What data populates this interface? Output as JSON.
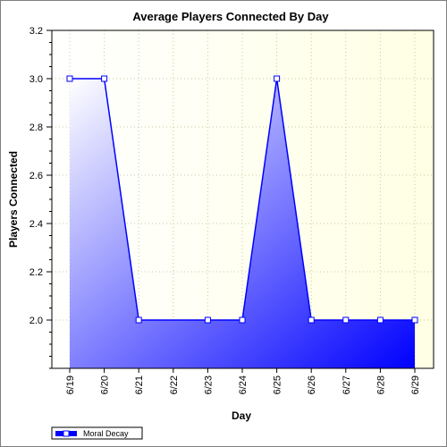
{
  "chart_data": {
    "type": "area",
    "title": "Average Players Connected By Day",
    "xlabel": "Day",
    "ylabel": "Players Connected",
    "categories": [
      "6/19",
      "6/20",
      "6/21",
      "6/22",
      "6/23",
      "6/24",
      "6/25",
      "6/26",
      "6/27",
      "6/28",
      "6/29"
    ],
    "series": [
      {
        "name": "Moral Decay",
        "points": [
          {
            "x": "6/19",
            "y": 3.0
          },
          {
            "x": "6/20",
            "y": 3.0
          },
          {
            "x": "6/21",
            "y": 2.0
          },
          {
            "x": "6/23",
            "y": 2.0
          },
          {
            "x": "6/24",
            "y": 2.0
          },
          {
            "x": "6/25",
            "y": 3.0
          },
          {
            "x": "6/26",
            "y": 2.0
          },
          {
            "x": "6/27",
            "y": 2.0
          },
          {
            "x": "6/28",
            "y": 2.0
          },
          {
            "x": "6/29",
            "y": 2.0
          }
        ]
      }
    ],
    "ylim": [
      1.8,
      3.2
    ],
    "yticks": [
      "2.0",
      "2.2",
      "2.4",
      "2.6",
      "2.8",
      "3.0",
      "3.2"
    ],
    "grid": true,
    "legend": "bottom-left",
    "colors": {
      "line": "#0000ff",
      "fill_light": "#ffffff",
      "fill_dark": "#0000ff",
      "background_light": "#ffffe4",
      "background_white": "#ffffff",
      "grid": "#c8c8a0",
      "marker_fill": "#ffffff"
    }
  }
}
